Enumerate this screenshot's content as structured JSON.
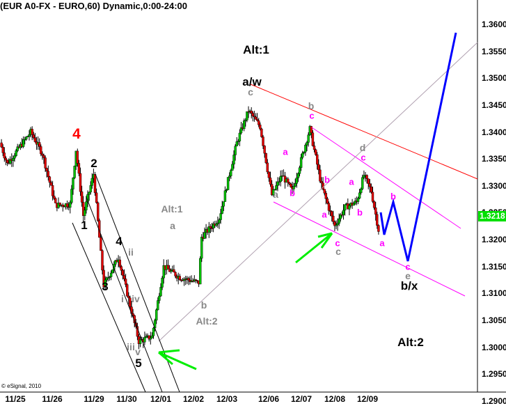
{
  "title": "(EUR A0-FX - EURO,60) Dynamic,0:00-24:00",
  "copyright": "© eSignal, 2010",
  "last_price": "1.3218",
  "colors": {
    "up": "#00c000",
    "down": "#e00000",
    "last": "#00e000",
    "projection": "#0000ff",
    "trend_red": "#ff0000",
    "channel": "#ff00ff",
    "arrow": "#00ff00"
  },
  "chart_data": {
    "type": "candlestick",
    "symbol": "EUR A0-FX",
    "interval": "60",
    "ylim": [
      1.288,
      1.364
    ],
    "yticks": [
      "1.3600",
      "1.3550",
      "1.3500",
      "1.3450",
      "1.3400",
      "1.3350",
      "1.3300",
      "1.3250",
      "1.3200",
      "1.3150",
      "1.3100",
      "1.3050",
      "1.3000",
      "1.2950",
      "1.2900"
    ],
    "xticks": [
      "11/25",
      "11/26",
      "11/29",
      "11/30",
      "12/01",
      "12/02",
      "12/03",
      "12/06",
      "12/07",
      "12/08",
      "12/09"
    ],
    "price_path": [
      [
        0,
        1.338
      ],
      [
        5,
        1.3341
      ],
      [
        21,
        1.34
      ],
      [
        29,
        1.336
      ],
      [
        38,
        1.3264
      ],
      [
        48,
        1.3266
      ],
      [
        52,
        1.3367
      ],
      [
        57,
        1.3245
      ],
      [
        64,
        1.3322
      ],
      [
        71,
        1.3115
      ],
      [
        81,
        1.3167
      ],
      [
        95,
        1.3011
      ],
      [
        104,
        1.302
      ],
      [
        112,
        1.315
      ],
      [
        123,
        1.313
      ],
      [
        136,
        1.312
      ],
      [
        138,
        1.3205
      ],
      [
        150,
        1.324
      ],
      [
        162,
        1.338
      ],
      [
        170,
        1.344
      ],
      [
        178,
        1.341
      ],
      [
        186,
        1.3283
      ],
      [
        193,
        1.332
      ],
      [
        200,
        1.329
      ],
      [
        212,
        1.3406
      ],
      [
        220,
        1.33
      ],
      [
        229,
        1.3225
      ],
      [
        236,
        1.326
      ],
      [
        244,
        1.327
      ],
      [
        249,
        1.332
      ],
      [
        254,
        1.329
      ],
      [
        259,
        1.3218
      ]
    ]
  },
  "labels": {
    "alt1_top": "Alt:1",
    "aw": "a/w",
    "c": "c",
    "four_red": "4",
    "two": "2",
    "one": "1",
    "four": "4",
    "three": "3",
    "five": "5",
    "ii": "ii",
    "i": "i",
    "iv": "iv",
    "iii": "iii",
    "v": "v",
    "alt1_mid": "Alt:1",
    "a": "a",
    "b": "b",
    "alt2_mid": "Alt:2",
    "d": "d",
    "e": "e",
    "bx": "b/x",
    "alt2_right": "Alt:2"
  }
}
